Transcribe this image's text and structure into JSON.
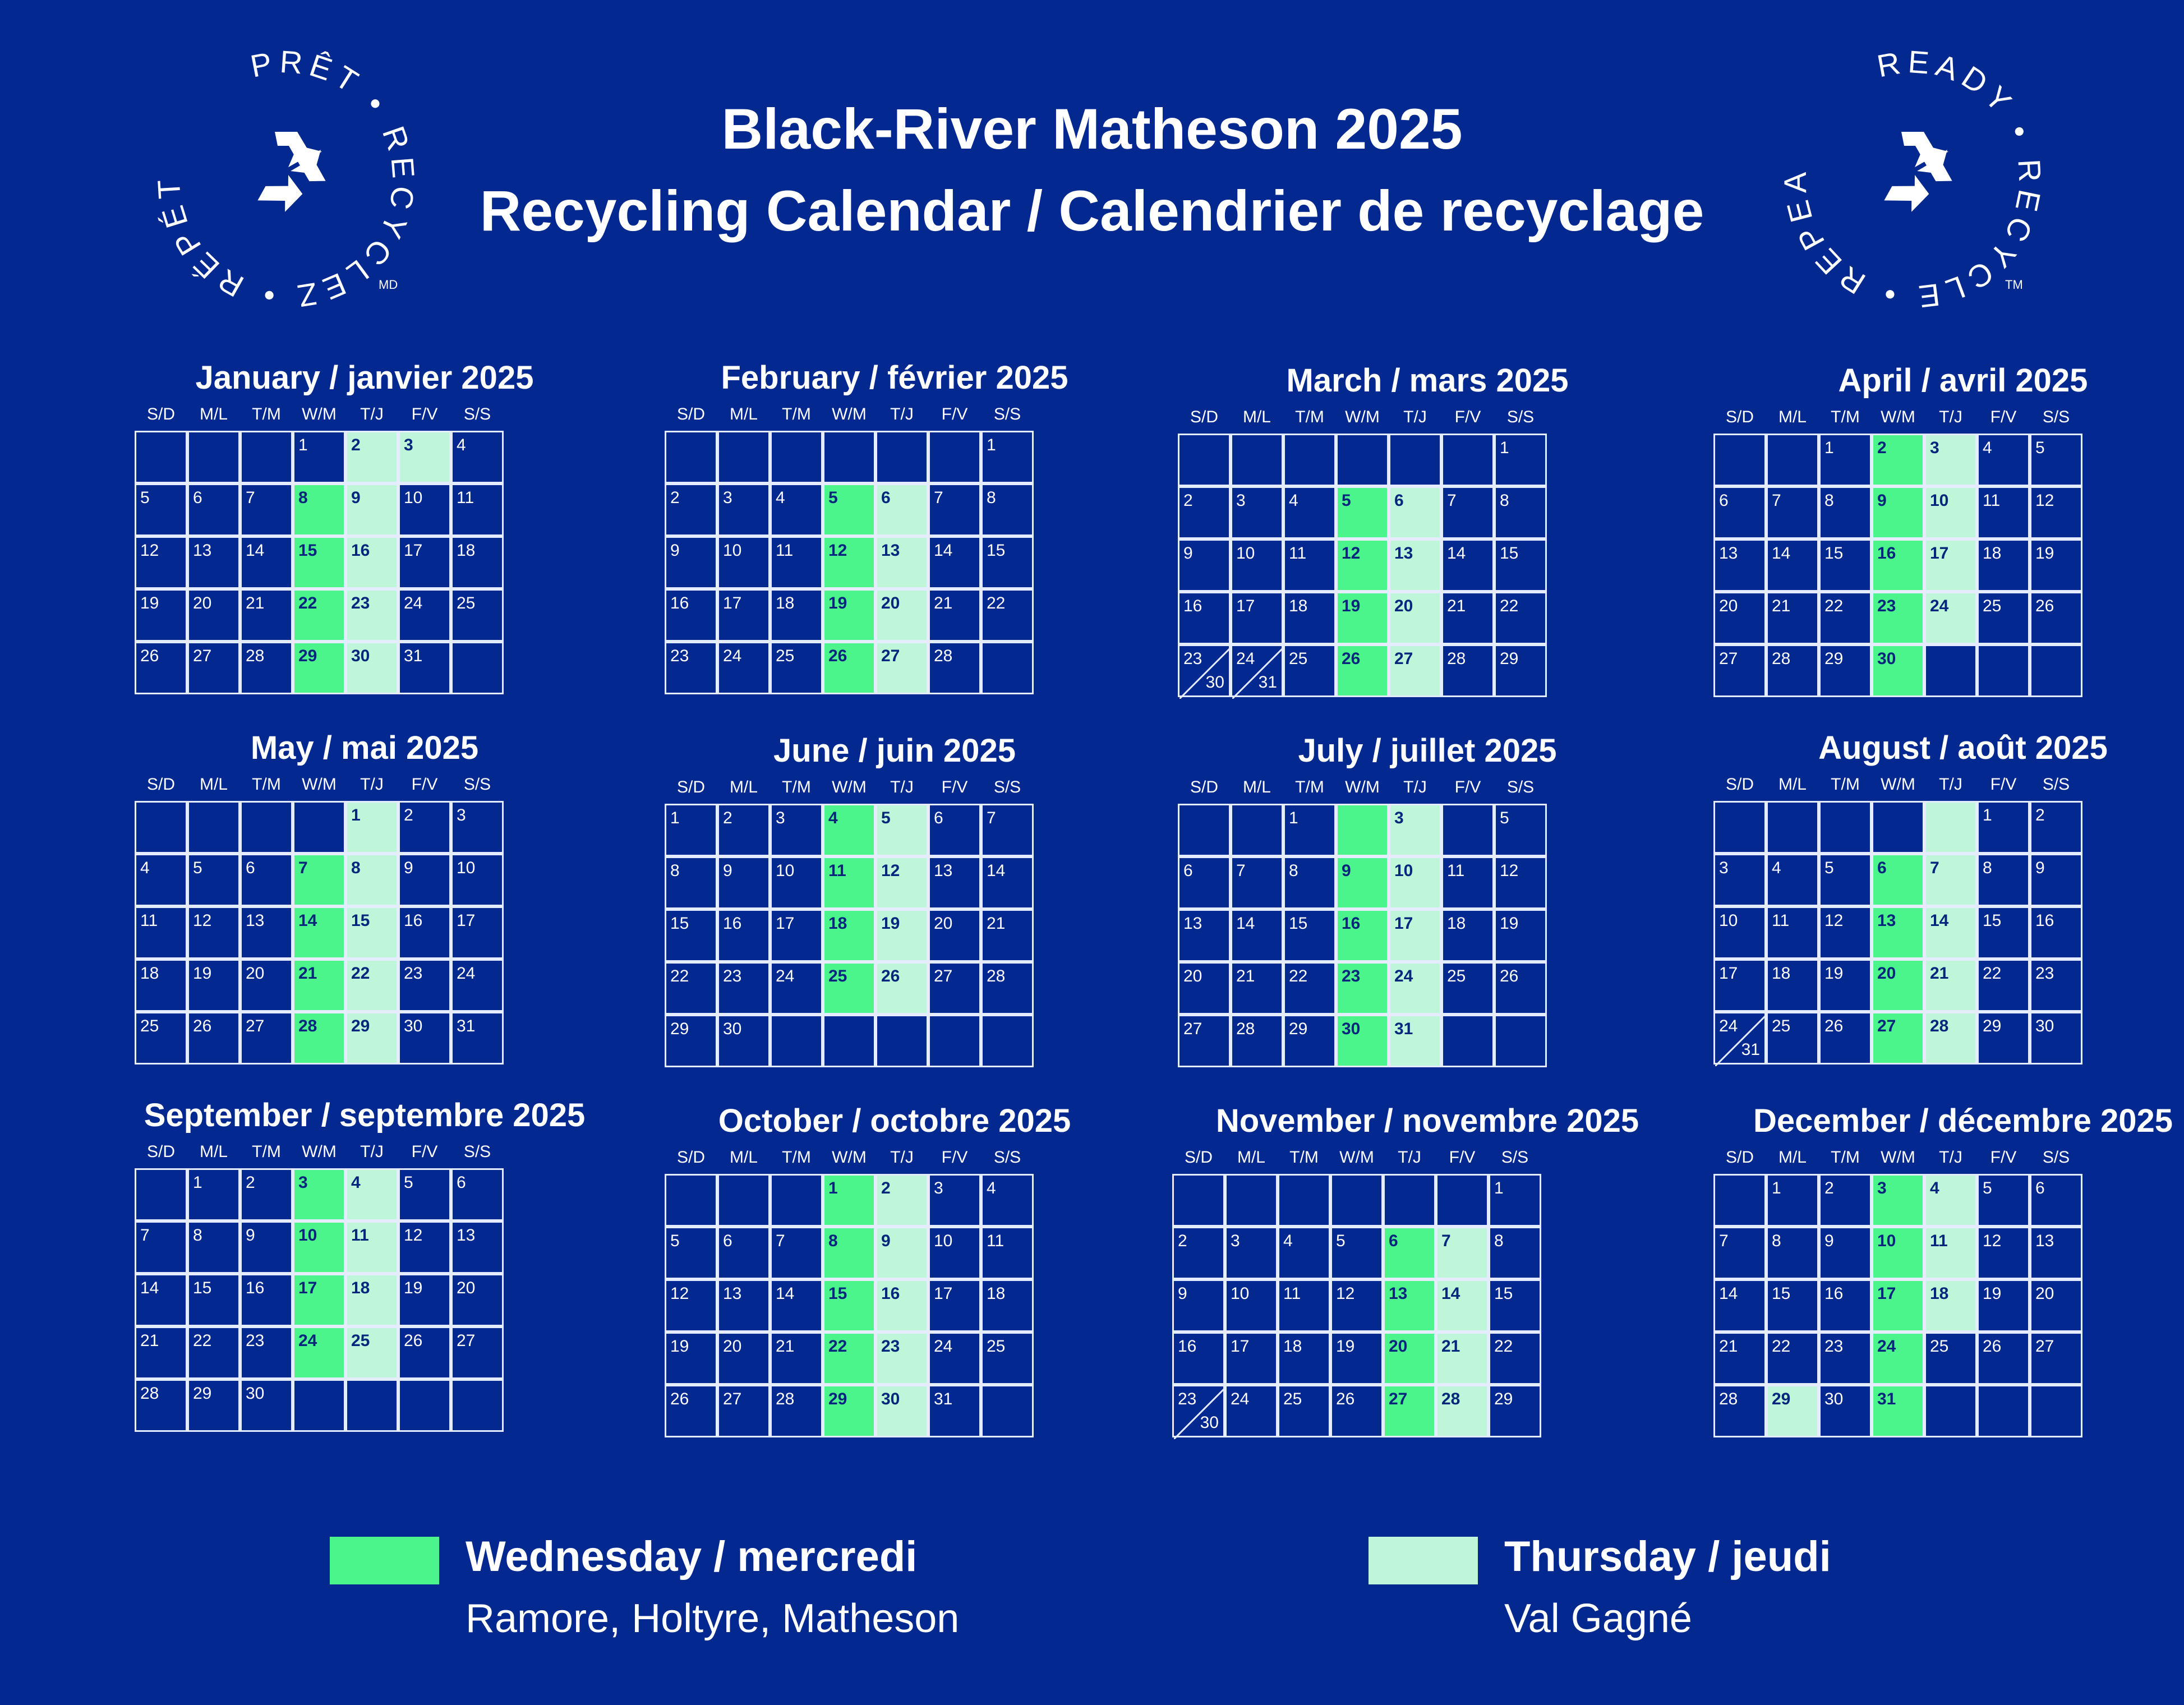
{
  "header": {
    "title_line1": "Black-River Matheson 2025",
    "title_line2": "Recycling Calendar / Calendrier de recyclage"
  },
  "logos": {
    "french": {
      "text": "PRÊT • RECYCLEZ • RÉPÉTEZ •",
      "mark": "MD",
      "icon": "recycle-icon"
    },
    "english": {
      "text": "READY • RECYCLE • REPEAT •",
      "mark": "TM",
      "icon": "recycle-icon"
    }
  },
  "weekday_headers": [
    "S/D",
    "M/L",
    "T/M",
    "W/M",
    "T/J",
    "F/V",
    "S/S"
  ],
  "months": [
    {
      "title": "January / janvier 2025",
      "start": 3,
      "days": 31,
      "split": [],
      "wed": [
        8,
        15,
        22,
        29
      ],
      "thu": [
        2,
        3,
        9,
        16,
        23,
        30
      ]
    },
    {
      "title": "February / février 2025",
      "start": 6,
      "days": 28,
      "split": [],
      "wed": [
        5,
        12,
        19,
        26
      ],
      "thu": [
        6,
        13,
        20,
        27
      ]
    },
    {
      "title": "March / mars 2025",
      "start": 6,
      "days": 31,
      "split": [
        23,
        24
      ],
      "wed": [
        5,
        12,
        19,
        26
      ],
      "thu": [
        6,
        13,
        20,
        27
      ]
    },
    {
      "title": "April / avril 2025",
      "start": 2,
      "days": 30,
      "split": [],
      "wed": [
        2,
        9,
        16,
        23,
        30
      ],
      "thu": [
        3,
        10,
        17,
        24
      ]
    },
    {
      "title": "May / mai 2025",
      "start": 4,
      "days": 31,
      "split": [],
      "wed": [
        7,
        14,
        21,
        28
      ],
      "thu": [
        1,
        8,
        15,
        22,
        29
      ]
    },
    {
      "title": "June / juin 2025",
      "start": 0,
      "days": 30,
      "split": [],
      "wed": [
        4,
        11,
        18,
        25
      ],
      "thu": [
        5,
        12,
        19,
        26
      ]
    },
    {
      "title": "July / juillet 2025",
      "start": 2,
      "days": 31,
      "split": [],
      "wed": [
        2,
        9,
        16,
        23,
        30
      ],
      "thu": [
        3,
        10,
        17,
        24,
        31
      ],
      "hidden": [
        2,
        4
      ]
    },
    {
      "title": "August / août 2025",
      "start": 5,
      "days": 31,
      "split": [
        24
      ],
      "wed": [
        6,
        13,
        20,
        27
      ],
      "thu": [
        7,
        14,
        21,
        28
      ],
      "thu_blank_first": true
    },
    {
      "title": "September / septembre 2025",
      "start": 1,
      "days": 30,
      "split": [],
      "wed": [
        3,
        10,
        17,
        24
      ],
      "thu": [
        4,
        11,
        18,
        25
      ]
    },
    {
      "title": "October / octobre 2025",
      "start": 3,
      "days": 31,
      "split": [],
      "wed": [
        1,
        8,
        15,
        22,
        29
      ],
      "thu": [
        2,
        9,
        16,
        23,
        30
      ]
    },
    {
      "title": "November / novembre 2025",
      "start": 6,
      "days": 30,
      "split": [
        23
      ],
      "wed": [],
      "thu": [],
      "nov_green": [
        6,
        13,
        20,
        27
      ],
      "nov_light": [
        7,
        14,
        21,
        28
      ]
    },
    {
      "title": "December  / décembre 2025",
      "start": 1,
      "days": 31,
      "split": [],
      "wed": [
        3,
        10,
        17,
        24,
        31
      ],
      "thu": [
        4,
        11,
        18,
        29
      ]
    }
  ],
  "legend": {
    "wednesday": {
      "label": "Wednesday / mercredi",
      "areas": "Ramore, Holtyre, Matheson",
      "color": "#4cf58c"
    },
    "thursday": {
      "label": "Thursday / jeudi",
      "areas": "Val Gagné",
      "color": "#bff6d9"
    }
  }
}
